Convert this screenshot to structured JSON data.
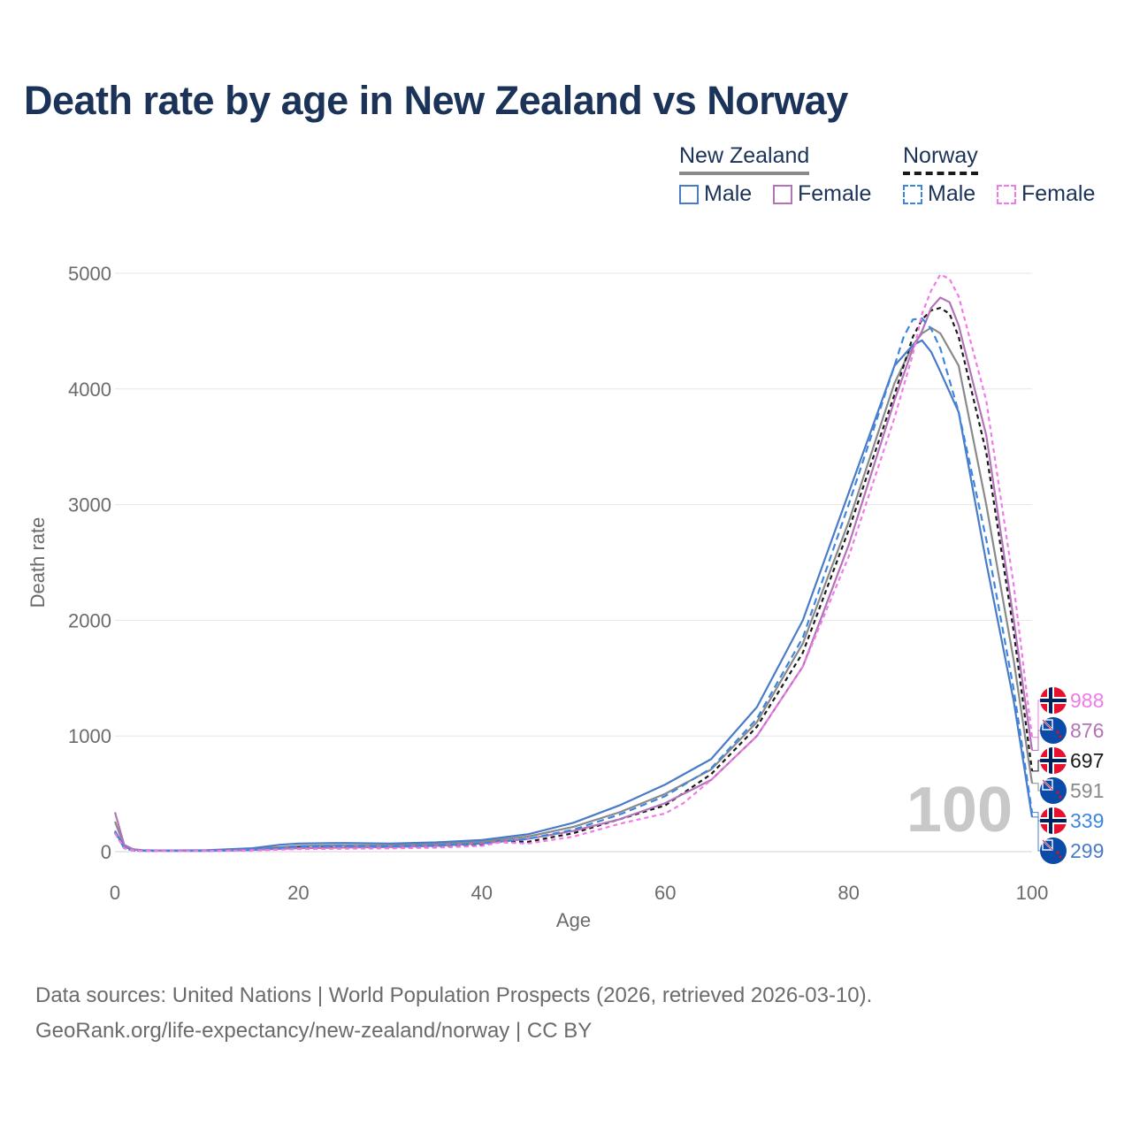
{
  "title": "Death rate by age in New Zealand vs Norway",
  "legend": {
    "groups": [
      {
        "name": "New Zealand",
        "male_label": "Male",
        "female_label": "Female",
        "head_color": "#8a8a8a",
        "male_color": "#4a7bc8",
        "female_color": "#b373b7"
      },
      {
        "name": "Norway",
        "male_label": "Male",
        "female_label": "Female",
        "head_color": "#1a1a1a",
        "male_color": "#3d86e0",
        "female_color": "#f07ae8"
      }
    ]
  },
  "chart_data": {
    "type": "line",
    "title": "Death rate by age in New Zealand vs Norway",
    "xlabel": "Age",
    "ylabel": "Death rate",
    "xlim": [
      0,
      100
    ],
    "ylim": [
      0,
      5000
    ],
    "xticks": [
      0,
      20,
      40,
      60,
      80,
      100
    ],
    "yticks": [
      0,
      1000,
      2000,
      3000,
      4000,
      5000
    ],
    "grid": true,
    "watermark": "100",
    "series": [
      {
        "name": "New Zealand Male",
        "country": "New Zealand",
        "sex": "Male",
        "color": "#4a7bc8",
        "dash": "",
        "end_label": "299",
        "x": [
          0,
          1,
          2,
          3,
          5,
          10,
          15,
          18,
          20,
          25,
          30,
          35,
          40,
          45,
          50,
          55,
          60,
          65,
          70,
          75,
          80,
          85,
          87,
          88,
          89,
          90,
          92,
          95,
          98,
          100
        ],
        "y": [
          180,
          40,
          20,
          12,
          10,
          12,
          30,
          60,
          70,
          75,
          70,
          80,
          100,
          150,
          250,
          400,
          580,
          800,
          1250,
          2000,
          3100,
          4200,
          4380,
          4420,
          4320,
          4150,
          3800,
          2500,
          1300,
          299
        ]
      },
      {
        "name": "New Zealand Female",
        "country": "New Zealand",
        "sex": "Female",
        "color": "#b373b7",
        "dash": "",
        "end_label": "876",
        "x": [
          0,
          1,
          2,
          3,
          5,
          10,
          15,
          20,
          25,
          30,
          35,
          40,
          45,
          50,
          55,
          60,
          65,
          70,
          75,
          80,
          85,
          87,
          88,
          89,
          90,
          91,
          92,
          95,
          98,
          100
        ],
        "y": [
          340,
          60,
          20,
          10,
          8,
          8,
          15,
          30,
          35,
          40,
          50,
          70,
          110,
          180,
          280,
          420,
          620,
          1000,
          1600,
          2650,
          3900,
          4350,
          4500,
          4700,
          4790,
          4750,
          4550,
          3600,
          2000,
          876
        ]
      },
      {
        "name": "New Zealand Total",
        "country": "New Zealand",
        "sex": "Total",
        "color": "#8a8a8a",
        "dash": "",
        "end_label": "591",
        "x": [
          0,
          1,
          2,
          3,
          5,
          10,
          15,
          20,
          25,
          30,
          35,
          40,
          45,
          50,
          55,
          60,
          65,
          70,
          75,
          80,
          85,
          87,
          88,
          89,
          90,
          92,
          95,
          98,
          100
        ],
        "y": [
          260,
          50,
          20,
          11,
          9,
          10,
          22,
          50,
          55,
          55,
          65,
          85,
          130,
          215,
          340,
          500,
          710,
          1120,
          1800,
          2850,
          4050,
          4380,
          4480,
          4530,
          4480,
          4200,
          3000,
          1650,
          591
        ]
      },
      {
        "name": "Norway Male",
        "country": "Norway",
        "sex": "Male",
        "color": "#3d86e0",
        "dash": "8,5",
        "end_label": "339",
        "x": [
          0,
          1,
          2,
          3,
          5,
          10,
          15,
          20,
          25,
          30,
          35,
          40,
          45,
          50,
          55,
          60,
          65,
          70,
          75,
          80,
          85,
          86,
          87,
          88,
          89,
          90,
          92,
          95,
          98,
          100
        ],
        "y": [
          170,
          30,
          10,
          8,
          6,
          6,
          15,
          45,
          50,
          45,
          55,
          70,
          110,
          190,
          320,
          480,
          720,
          1150,
          1850,
          3000,
          4200,
          4450,
          4600,
          4610,
          4520,
          4350,
          3800,
          2700,
          1400,
          339
        ]
      },
      {
        "name": "Norway Female",
        "country": "Norway",
        "sex": "Female",
        "color": "#f07ae8",
        "dash": "5,4",
        "end_label": "988",
        "x": [
          0,
          1,
          2,
          3,
          5,
          10,
          15,
          20,
          25,
          30,
          35,
          40,
          42,
          45,
          50,
          55,
          60,
          62,
          65,
          70,
          75,
          80,
          85,
          87,
          88,
          89,
          90,
          91,
          92,
          95,
          98,
          100
        ],
        "y": [
          160,
          30,
          10,
          6,
          5,
          5,
          10,
          22,
          25,
          28,
          35,
          50,
          80,
          70,
          130,
          240,
          330,
          420,
          620,
          1000,
          1600,
          2550,
          3750,
          4300,
          4650,
          4850,
          4990,
          4950,
          4800,
          3900,
          2300,
          988
        ]
      },
      {
        "name": "Norway Total",
        "country": "Norway",
        "sex": "Total",
        "color": "#1a1a1a",
        "dash": "5,4",
        "end_label": "697",
        "x": [
          0,
          1,
          2,
          3,
          5,
          10,
          15,
          20,
          25,
          30,
          35,
          40,
          42,
          45,
          50,
          55,
          60,
          65,
          70,
          75,
          80,
          85,
          87,
          88,
          89,
          90,
          91,
          92,
          95,
          98,
          100
        ],
        "y": [
          165,
          30,
          10,
          7,
          6,
          6,
          13,
          35,
          38,
          37,
          45,
          60,
          90,
          85,
          160,
          280,
          400,
          670,
          1080,
          1720,
          2780,
          3950,
          4450,
          4600,
          4680,
          4700,
          4650,
          4450,
          3450,
          1900,
          697
        ]
      }
    ]
  },
  "source": {
    "line1": "Data sources: United Nations | World Population Prospects (2026, retrieved 2026-03-10).",
    "line2": "GeoRank.org/life-expectancy/new-zealand/norway | CC BY"
  }
}
